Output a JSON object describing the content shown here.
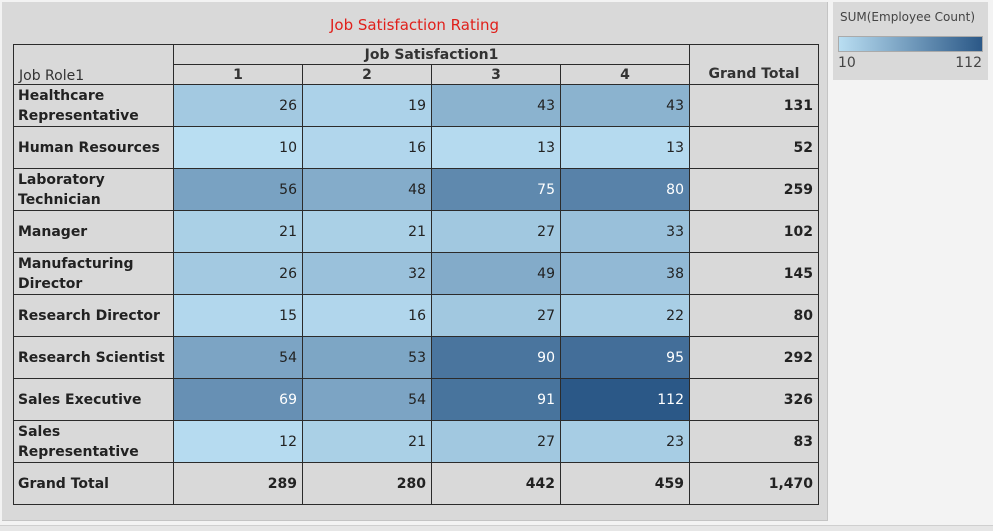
{
  "chart_data": {
    "type": "heatmap",
    "title": "Job Satisfaction Rating",
    "row_header_label": "Job Role1",
    "column_group_label": "Job Satisfaction1",
    "columns": [
      "1",
      "2",
      "3",
      "4"
    ],
    "grand_total_label": "Grand Total",
    "rows": [
      {
        "label": "Healthcare Representative",
        "values": [
          26,
          19,
          43,
          43
        ],
        "total": "131"
      },
      {
        "label": "Human Resources",
        "values": [
          10,
          16,
          13,
          13
        ],
        "total": "52"
      },
      {
        "label": "Laboratory Technician",
        "values": [
          56,
          48,
          75,
          80
        ],
        "total": "259"
      },
      {
        "label": "Manager",
        "values": [
          21,
          21,
          27,
          33
        ],
        "total": "102"
      },
      {
        "label": "Manufacturing Director",
        "values": [
          26,
          32,
          49,
          38
        ],
        "total": "145"
      },
      {
        "label": "Research Director",
        "values": [
          15,
          16,
          27,
          22
        ],
        "total": "80"
      },
      {
        "label": "Research Scientist",
        "values": [
          54,
          53,
          90,
          95
        ],
        "total": "292"
      },
      {
        "label": "Sales Executive",
        "values": [
          69,
          54,
          91,
          112
        ],
        "total": "326"
      },
      {
        "label": "Sales Representative",
        "values": [
          12,
          21,
          27,
          23
        ],
        "total": "83"
      }
    ],
    "column_totals": [
      "289",
      "280",
      "442",
      "459"
    ],
    "overall_total": "1,470",
    "legend": {
      "title": "SUM(Employee Count)",
      "min": 10,
      "max": 112,
      "min_label": "10",
      "max_label": "112"
    },
    "color_scale": {
      "low": "#b9def2",
      "high": "#2b5887"
    }
  }
}
